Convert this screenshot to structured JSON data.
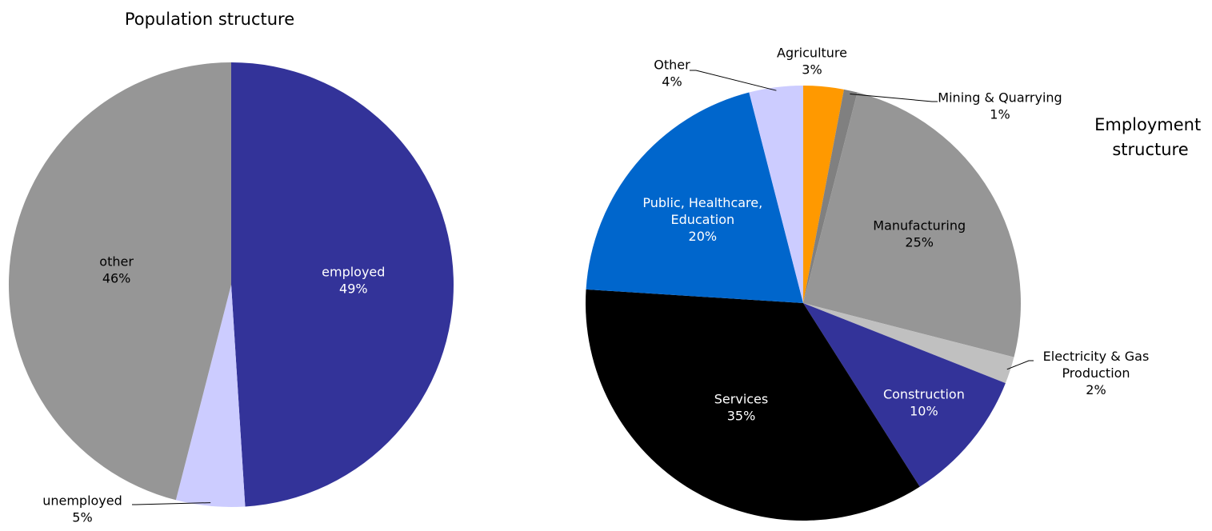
{
  "chart_data": [
    {
      "type": "pie",
      "title": "Population structure",
      "slices": [
        {
          "label": "employed",
          "value": 49,
          "value_label": "49%",
          "color": "#333399",
          "text_color": "#ffffff"
        },
        {
          "label": "unemployed",
          "value": 5,
          "value_label": "5%",
          "color": "#ccccff",
          "text_color": "#000000"
        },
        {
          "label": "other",
          "value": 46,
          "value_label": "46%",
          "color": "#969696",
          "text_color": "#000000"
        }
      ]
    },
    {
      "type": "pie",
      "title": "Employment structure",
      "title_lines": [
        "Employment",
        "structure"
      ],
      "slices": [
        {
          "label": "Agriculture",
          "value": 3,
          "value_label": "3%",
          "color": "#ff9900",
          "text_color": "#000000"
        },
        {
          "label": "Mining & Quarrying",
          "value": 1,
          "value_label": "1%",
          "color": "#808080",
          "text_color": "#000000"
        },
        {
          "label": "Manufacturing",
          "value": 25,
          "value_label": "25%",
          "color": "#969696",
          "text_color": "#000000"
        },
        {
          "label": "Electricity & Gas Production",
          "label_lines": [
            "Electricity & Gas",
            "Production"
          ],
          "value": 2,
          "value_label": "2%",
          "color": "#c0c0c0",
          "text_color": "#000000"
        },
        {
          "label": "Construction",
          "value": 10,
          "value_label": "10%",
          "color": "#333399",
          "text_color": "#ffffff"
        },
        {
          "label": "Services",
          "value": 35,
          "value_label": "35%",
          "color": "#000000",
          "text_color": "#ffffff"
        },
        {
          "label": "Public, Healthcare, Education",
          "label_lines": [
            "Public, Healthcare,",
            "Education"
          ],
          "value": 20,
          "value_label": "20%",
          "color": "#0066cc",
          "text_color": "#ffffff"
        },
        {
          "label": "Other",
          "value": 4,
          "value_label": "4%",
          "color": "#ccccff",
          "text_color": "#000000"
        }
      ]
    }
  ]
}
